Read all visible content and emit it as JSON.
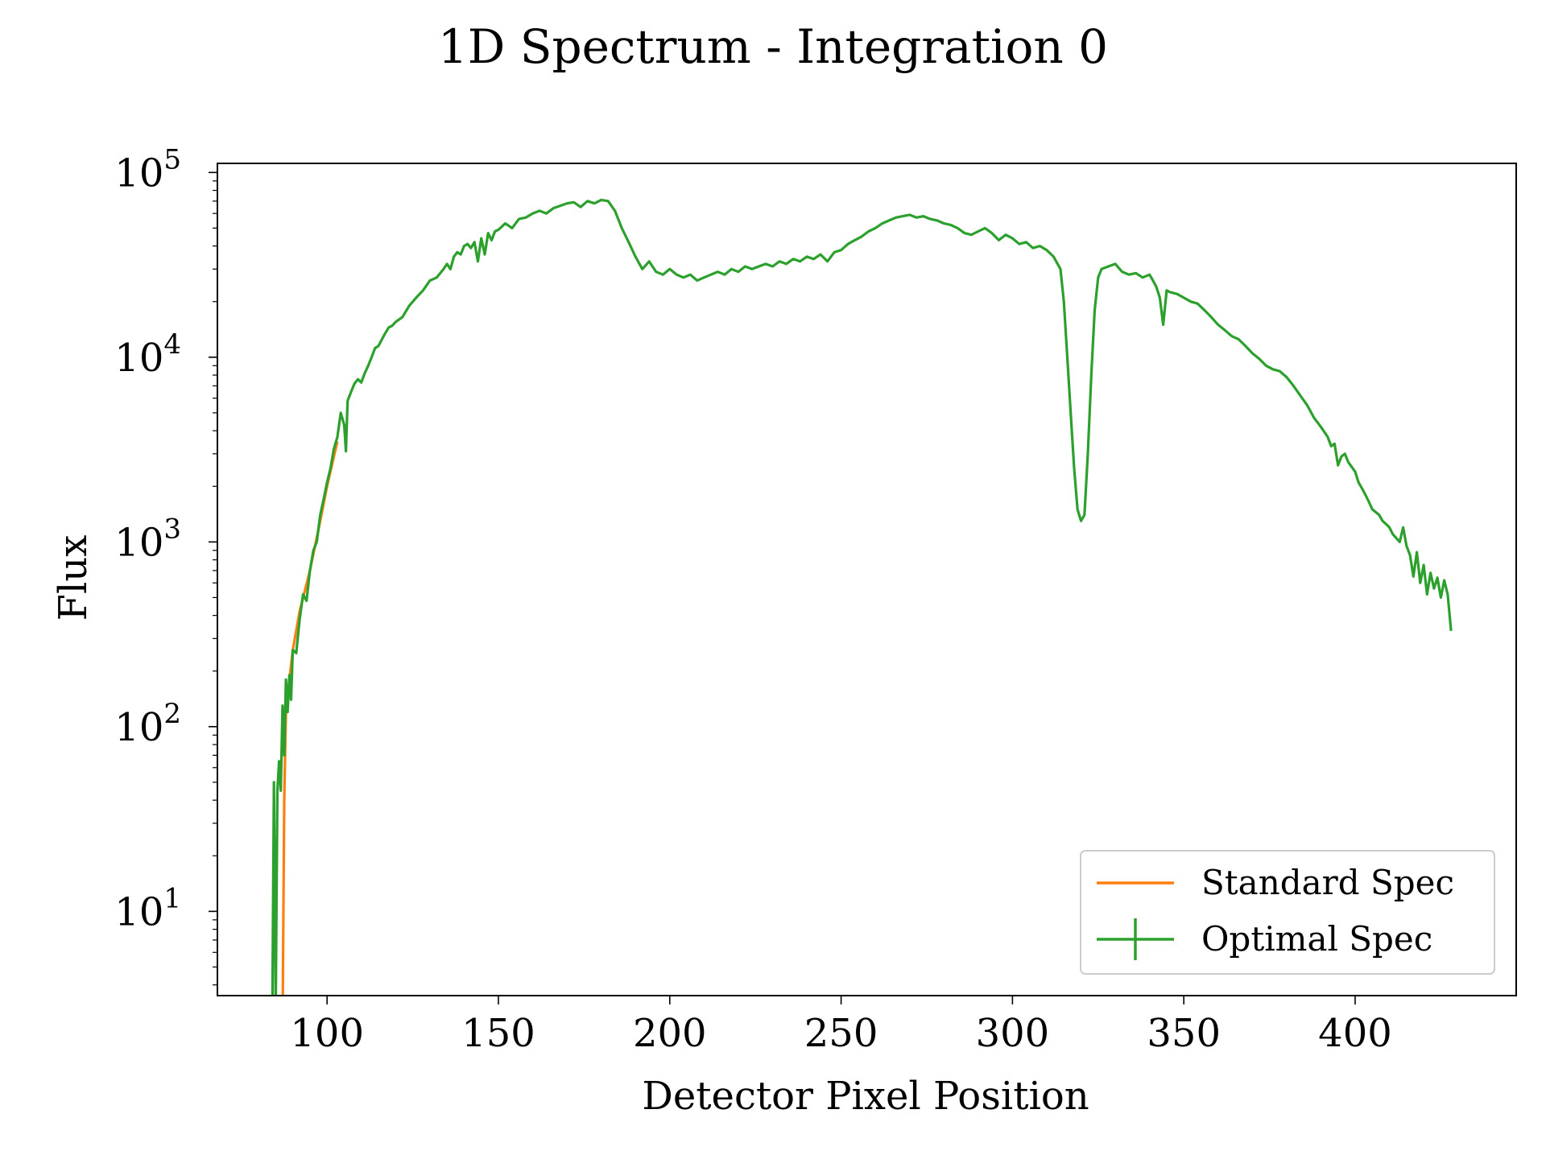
{
  "chart_data": {
    "type": "line",
    "title": "1D Spectrum - Integration 0",
    "xlabel": "Detector Pixel Position",
    "ylabel": "Flux",
    "xlim": [
      68,
      447
    ],
    "ylim": [
      3.5,
      112000
    ],
    "yscale": "log",
    "x_ticks": [
      100,
      150,
      200,
      250,
      300,
      350,
      400
    ],
    "y_ticks": [
      {
        "value": 10,
        "base": "10",
        "exp": "1"
      },
      {
        "value": 100,
        "base": "10",
        "exp": "2"
      },
      {
        "value": 1000,
        "base": "10",
        "exp": "3"
      },
      {
        "value": 10000,
        "base": "10",
        "exp": "4"
      },
      {
        "value": 100000,
        "base": "10",
        "exp": "5"
      }
    ],
    "grid": false,
    "legend_position": "lower-right",
    "series": [
      {
        "name": "Standard Spec",
        "color": "#ff7f0e",
        "marker": "line",
        "points": [
          [
            87,
            1
          ],
          [
            87.5,
            40
          ],
          [
            88,
            120
          ],
          [
            89,
            180
          ],
          [
            90,
            260
          ],
          [
            92,
            420
          ],
          [
            95,
            700
          ],
          [
            98,
            1300
          ],
          [
            100,
            2000
          ],
          [
            103,
            3500
          ]
        ]
      },
      {
        "name": "Optimal Spec",
        "color": "#2ca02c",
        "marker": "errorbar",
        "points": [
          [
            84,
            1
          ],
          [
            84.5,
            50
          ],
          [
            85,
            3
          ],
          [
            85.5,
            45
          ],
          [
            86,
            65
          ],
          [
            86.5,
            45
          ],
          [
            87,
            130
          ],
          [
            87.5,
            70
          ],
          [
            88,
            180
          ],
          [
            88.5,
            120
          ],
          [
            89,
            190
          ],
          [
            89.5,
            140
          ],
          [
            90,
            260
          ],
          [
            91,
            250
          ],
          [
            92,
            380
          ],
          [
            93,
            520
          ],
          [
            94,
            480
          ],
          [
            95,
            700
          ],
          [
            96,
            900
          ],
          [
            97,
            1000
          ],
          [
            98,
            1400
          ],
          [
            99,
            1700
          ],
          [
            100,
            2100
          ],
          [
            101,
            2500
          ],
          [
            102,
            3200
          ],
          [
            103,
            3700
          ],
          [
            104,
            5000
          ],
          [
            105,
            4300
          ],
          [
            105.5,
            3100
          ],
          [
            106,
            5800
          ],
          [
            107,
            6500
          ],
          [
            108,
            7200
          ],
          [
            109,
            7600
          ],
          [
            110,
            7300
          ],
          [
            111,
            8200
          ],
          [
            112,
            9000
          ],
          [
            113,
            10000
          ],
          [
            114,
            11200
          ],
          [
            115,
            11500
          ],
          [
            116,
            12500
          ],
          [
            117,
            13500
          ],
          [
            118,
            14500
          ],
          [
            119,
            14800
          ],
          [
            120,
            15500
          ],
          [
            122,
            16500
          ],
          [
            124,
            19000
          ],
          [
            126,
            21000
          ],
          [
            128,
            23000
          ],
          [
            130,
            26000
          ],
          [
            132,
            27000
          ],
          [
            134,
            30000
          ],
          [
            135,
            32000
          ],
          [
            136,
            30000
          ],
          [
            137,
            35000
          ],
          [
            138,
            37000
          ],
          [
            139,
            36000
          ],
          [
            140,
            40000
          ],
          [
            141,
            41000
          ],
          [
            142,
            39000
          ],
          [
            143,
            42000
          ],
          [
            144,
            33000
          ],
          [
            145,
            44000
          ],
          [
            146,
            36000
          ],
          [
            147,
            47000
          ],
          [
            148,
            43000
          ],
          [
            149,
            48000
          ],
          [
            150,
            49000
          ],
          [
            152,
            53000
          ],
          [
            154,
            50000
          ],
          [
            156,
            56000
          ],
          [
            158,
            57000
          ],
          [
            160,
            60000
          ],
          [
            162,
            62000
          ],
          [
            164,
            60000
          ],
          [
            166,
            64000
          ],
          [
            168,
            66000
          ],
          [
            170,
            68000
          ],
          [
            172,
            69000
          ],
          [
            174,
            65000
          ],
          [
            176,
            70000
          ],
          [
            178,
            68000
          ],
          [
            180,
            71000
          ],
          [
            182,
            70000
          ],
          [
            184,
            62000
          ],
          [
            186,
            50000
          ],
          [
            188,
            42000
          ],
          [
            190,
            35000
          ],
          [
            192,
            30000
          ],
          [
            194,
            33000
          ],
          [
            196,
            29000
          ],
          [
            198,
            28000
          ],
          [
            200,
            30000
          ],
          [
            202,
            28000
          ],
          [
            204,
            27000
          ],
          [
            206,
            28000
          ],
          [
            208,
            26000
          ],
          [
            210,
            27000
          ],
          [
            212,
            28000
          ],
          [
            214,
            29000
          ],
          [
            216,
            28000
          ],
          [
            218,
            30000
          ],
          [
            220,
            29000
          ],
          [
            222,
            31000
          ],
          [
            224,
            30000
          ],
          [
            226,
            31000
          ],
          [
            228,
            32000
          ],
          [
            230,
            31000
          ],
          [
            232,
            33000
          ],
          [
            234,
            32000
          ],
          [
            236,
            34000
          ],
          [
            238,
            33000
          ],
          [
            240,
            35000
          ],
          [
            242,
            34000
          ],
          [
            244,
            36000
          ],
          [
            246,
            33000
          ],
          [
            248,
            37000
          ],
          [
            250,
            38000
          ],
          [
            252,
            41000
          ],
          [
            254,
            43000
          ],
          [
            256,
            45000
          ],
          [
            258,
            48000
          ],
          [
            260,
            50000
          ],
          [
            262,
            53000
          ],
          [
            264,
            55000
          ],
          [
            266,
            57000
          ],
          [
            268,
            58000
          ],
          [
            270,
            59000
          ],
          [
            272,
            57000
          ],
          [
            274,
            58000
          ],
          [
            276,
            56000
          ],
          [
            278,
            55000
          ],
          [
            280,
            53000
          ],
          [
            282,
            52000
          ],
          [
            284,
            50000
          ],
          [
            286,
            47000
          ],
          [
            288,
            46000
          ],
          [
            290,
            48000
          ],
          [
            292,
            50000
          ],
          [
            294,
            47000
          ],
          [
            296,
            43000
          ],
          [
            298,
            46000
          ],
          [
            300,
            44000
          ],
          [
            302,
            41000
          ],
          [
            304,
            42000
          ],
          [
            306,
            39000
          ],
          [
            308,
            40000
          ],
          [
            310,
            38000
          ],
          [
            312,
            35000
          ],
          [
            314,
            30000
          ],
          [
            315,
            20000
          ],
          [
            316,
            10000
          ],
          [
            317,
            5000
          ],
          [
            318,
            2500
          ],
          [
            319,
            1500
          ],
          [
            320,
            1300
          ],
          [
            321,
            1400
          ],
          [
            322,
            3000
          ],
          [
            323,
            8000
          ],
          [
            324,
            18000
          ],
          [
            325,
            27000
          ],
          [
            326,
            30000
          ],
          [
            328,
            31000
          ],
          [
            330,
            32000
          ],
          [
            332,
            29000
          ],
          [
            334,
            28000
          ],
          [
            336,
            28500
          ],
          [
            338,
            27000
          ],
          [
            340,
            28000
          ],
          [
            341,
            26000
          ],
          [
            342,
            24000
          ],
          [
            343,
            21000
          ],
          [
            344,
            15000
          ],
          [
            345,
            23000
          ],
          [
            346,
            22500
          ],
          [
            348,
            22000
          ],
          [
            350,
            21000
          ],
          [
            352,
            20000
          ],
          [
            354,
            19500
          ],
          [
            356,
            18000
          ],
          [
            358,
            16500
          ],
          [
            360,
            15000
          ],
          [
            362,
            14000
          ],
          [
            364,
            13000
          ],
          [
            366,
            12500
          ],
          [
            368,
            11500
          ],
          [
            370,
            10500
          ],
          [
            372,
            9800
          ],
          [
            374,
            9000
          ],
          [
            376,
            8600
          ],
          [
            378,
            8400
          ],
          [
            380,
            7800
          ],
          [
            382,
            7000
          ],
          [
            384,
            6200
          ],
          [
            386,
            5500
          ],
          [
            388,
            4700
          ],
          [
            390,
            4200
          ],
          [
            392,
            3700
          ],
          [
            393,
            3300
          ],
          [
            394,
            3400
          ],
          [
            395,
            2600
          ],
          [
            396,
            2900
          ],
          [
            397,
            3000
          ],
          [
            398,
            2700
          ],
          [
            400,
            2400
          ],
          [
            401,
            2100
          ],
          [
            402,
            1950
          ],
          [
            403,
            1800
          ],
          [
            404,
            1650
          ],
          [
            405,
            1500
          ],
          [
            406,
            1450
          ],
          [
            407,
            1400
          ],
          [
            408,
            1300
          ],
          [
            409,
            1250
          ],
          [
            410,
            1200
          ],
          [
            411,
            1100
          ],
          [
            412,
            1050
          ],
          [
            413,
            1000
          ],
          [
            414,
            1200
          ],
          [
            415,
            950
          ],
          [
            416,
            850
          ],
          [
            417,
            650
          ],
          [
            418,
            880
          ],
          [
            419,
            600
          ],
          [
            420,
            750
          ],
          [
            421,
            520
          ],
          [
            422,
            680
          ],
          [
            423,
            560
          ],
          [
            424,
            640
          ],
          [
            425,
            500
          ],
          [
            426,
            620
          ],
          [
            427,
            520
          ],
          [
            428,
            330
          ]
        ]
      }
    ]
  }
}
